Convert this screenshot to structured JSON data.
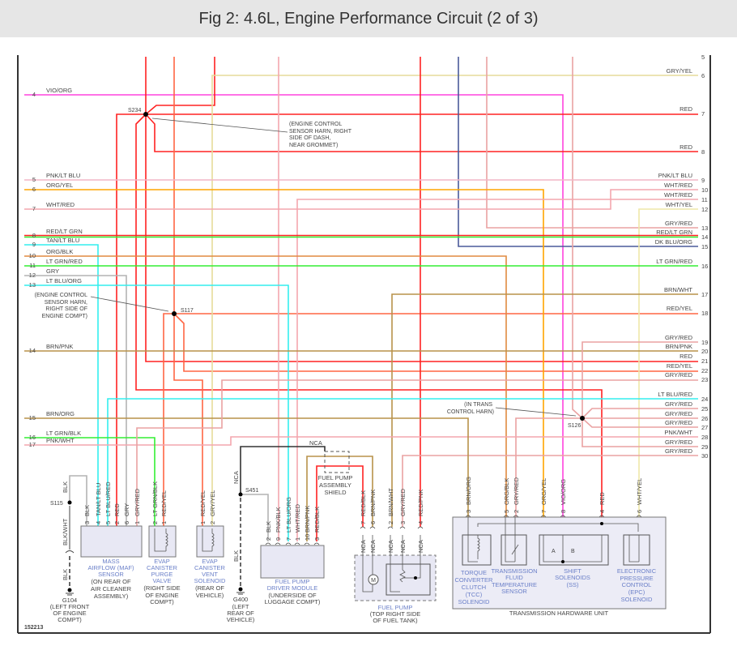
{
  "title": "Fig 2: 4.6L, Engine Performance Circuit (2 of 3)",
  "figure_id": "152213",
  "left_rows": [
    {
      "num": "4",
      "wire": "VIO/ORG"
    },
    {
      "num": "5",
      "wire": "PNK/LT BLU"
    },
    {
      "num": "6",
      "wire": "ORG/YEL"
    },
    {
      "num": "7",
      "wire": "WHT/RED"
    },
    {
      "num": "8",
      "wire": "RED/LT GRN"
    },
    {
      "num": "9",
      "wire": "TAN/LT BLU"
    },
    {
      "num": "10",
      "wire": "ORG/BLK"
    },
    {
      "num": "11",
      "wire": "LT GRN/RED"
    },
    {
      "num": "12",
      "wire": "GRY"
    },
    {
      "num": "13",
      "wire": "LT BLU/ORG"
    },
    {
      "num": "14",
      "wire": "BRN/PNK"
    },
    {
      "num": "15",
      "wire": "BRN/ORG"
    },
    {
      "num": "16",
      "wire": "LT GRN/BLK"
    },
    {
      "num": "17",
      "wire": "PNK/WHT"
    }
  ],
  "right_rows": [
    {
      "num": "5",
      "wire": ""
    },
    {
      "num": "6",
      "wire": "GRY/YEL"
    },
    {
      "num": "7",
      "wire": "RED"
    },
    {
      "num": "8",
      "wire": "RED"
    },
    {
      "num": "9",
      "wire": "PNK/LT BLU"
    },
    {
      "num": "10",
      "wire": "WHT/RED"
    },
    {
      "num": "11",
      "wire": "WHT/RED"
    },
    {
      "num": "12",
      "wire": "WHT/YEL"
    },
    {
      "num": "13",
      "wire": "GRY/RED"
    },
    {
      "num": "14",
      "wire": "RED/LT GRN"
    },
    {
      "num": "15",
      "wire": "DK BLU/ORG"
    },
    {
      "num": "16",
      "wire": "LT GRN/RED"
    },
    {
      "num": "17",
      "wire": "BRN/WHT"
    },
    {
      "num": "18",
      "wire": "RED/YEL"
    },
    {
      "num": "19",
      "wire": "GRY/RED"
    },
    {
      "num": "20",
      "wire": "BRN/PNK"
    },
    {
      "num": "21",
      "wire": "RED"
    },
    {
      "num": "22",
      "wire": "RED/YEL"
    },
    {
      "num": "23",
      "wire": "GRY/RED"
    },
    {
      "num": "24",
      "wire": "LT BLU/RED"
    },
    {
      "num": "25",
      "wire": "GRY/RED"
    },
    {
      "num": "26",
      "wire": "GRY/RED"
    },
    {
      "num": "27",
      "wire": "GRY/RED"
    },
    {
      "num": "28",
      "wire": "PNK/WHT"
    },
    {
      "num": "29",
      "wire": "GRY/RED"
    },
    {
      "num": "30",
      "wire": "GRY/RED"
    }
  ],
  "splices": {
    "s234": {
      "id": "S234",
      "note": [
        "(ENGINE CONTROL",
        "SENSOR HARN, RIGHT",
        "SIDE OF DASH,",
        "NEAR GROMMET)"
      ]
    },
    "s117": {
      "id": "S117",
      "note": [
        "(ENGINE CONTROL",
        "SENSOR HARN,",
        "RIGHT SIDE OF",
        "ENGINE COMPT)"
      ]
    },
    "s126": {
      "id": "S126",
      "note": [
        "(IN TRANS",
        "CONTROL HARN)"
      ]
    },
    "s115": {
      "id": "S115"
    },
    "s451": {
      "id": "S451"
    }
  },
  "grounds": {
    "g104": {
      "id": "G104",
      "loc": [
        "(LEFT FRONT",
        "OF ENGINE",
        "COMPT)"
      ],
      "wire_top": "BLK",
      "wire_mid": "BLK/WHT",
      "wire_bot": "BLK"
    },
    "g400": {
      "id": "G400",
      "loc": [
        "(LEFT",
        "REAR OF",
        "VEHICLE)"
      ],
      "wire_top": "NCA",
      "wire_bot": "BLK"
    }
  },
  "components": {
    "maf": {
      "name": [
        "MASS",
        "AIRFLOW (MAF)",
        "SENSOR"
      ],
      "loc": [
        "(ON REAR OF",
        "AIR CLEANER",
        "ASSEMBLY)"
      ],
      "pins": [
        {
          "pin": "3",
          "wire": "BLK"
        },
        {
          "pin": "4",
          "wire": "TAN/LT BLU"
        },
        {
          "pin": "5",
          "wire": "LT BLU/RED"
        },
        {
          "pin": "2",
          "wire": "RED"
        },
        {
          "pin": "6",
          "wire": "GRY"
        },
        {
          "pin": "1",
          "wire": "GRY/RED"
        }
      ]
    },
    "purge": {
      "name": [
        "EVAP",
        "CANISTER",
        "PURGE",
        "VALVE"
      ],
      "loc": [
        "(RIGHT SIDE",
        "OF ENGINE",
        "COMPT)"
      ],
      "pins": [
        {
          "pin": "2",
          "wire": "LT GRN/BLK"
        },
        {
          "pin": "1",
          "wire": "RED/YEL"
        }
      ]
    },
    "vent": {
      "name": [
        "EVAP",
        "CANISTER",
        "VENT",
        "SOLENOID"
      ],
      "loc": [
        "(REAR OF",
        "VEHICLE)"
      ],
      "pins": [
        {
          "pin": "1",
          "wire": "RED/YEL"
        },
        {
          "pin": "2",
          "wire": "GRY/YEL"
        }
      ]
    },
    "fpdm": {
      "name": [
        "FUEL PUMP",
        "DRIVER MODULE"
      ],
      "loc": [
        "(UNDERSIDE OF",
        "LUGGAGE COMPT)"
      ],
      "pins": [
        {
          "pin": "2",
          "wire": "BLK"
        },
        {
          "pin": "9",
          "wire": "PNK/BLK"
        },
        {
          "pin": "7",
          "wire": "LT BLU/ORG"
        },
        {
          "pin": "1",
          "wire": "WHT/RED"
        },
        {
          "pin": "10",
          "wire": "BRN/PNK"
        },
        {
          "pin": "3",
          "wire": "RED/BLK"
        }
      ]
    },
    "shield": {
      "name": [
        "FUEL PUMP",
        "ASSEMBLY",
        "SHIELD"
      ],
      "wire": "NCA"
    },
    "fuelpump": {
      "name": [
        "FUEL PUMP"
      ],
      "loc": [
        "(TOP RIGHT SIDE",
        "OF FUEL TANK)"
      ],
      "motor": "M",
      "pins": [
        {
          "pin": "7",
          "wire": "RED/BLK",
          "inner": "NCA"
        },
        {
          "pin": "6",
          "wire": "BRN/PNK",
          "inner": "NCA"
        },
        {
          "pin": "2",
          "wire": "BRN/WHT",
          "inner": "NCA"
        },
        {
          "pin": "3",
          "wire": "GRY/RED",
          "inner": "NCA"
        },
        {
          "pin": "4",
          "wire": "RED/PNK",
          "inner": "NCA"
        }
      ]
    },
    "thu": {
      "name": "TRANSMISSION HARDWARE UNIT",
      "pins": [
        {
          "pin": "3",
          "wire": "BRN/ORG"
        },
        {
          "pin": "5",
          "wire": "ORG/BLK"
        },
        {
          "pin": "2",
          "wire": "GRY/RED"
        },
        {
          "pin": "7",
          "wire": "ORG/YEL"
        },
        {
          "pin": "8",
          "wire": "VIO/ORG"
        },
        {
          "pin": "4",
          "wire": "RED"
        },
        {
          "pin": "6",
          "wire": "WHT/YEL"
        }
      ],
      "tcc": [
        "TORQUE",
        "CONVERTER",
        "CLUTCH",
        "(TCC)",
        "SOLENOID"
      ],
      "tft": [
        "TRANSMISSION",
        "FLUID",
        "TEMPERATURE",
        "SENSOR"
      ],
      "ss": [
        "SHIFT",
        "SOLENOIDS",
        "(SS)"
      ],
      "ss_a": "A",
      "ss_b": "B",
      "epc": [
        "ELECTRONIC",
        "PRESSURE",
        "CONTROL",
        "(EPC)",
        "SOLENOID"
      ]
    }
  }
}
